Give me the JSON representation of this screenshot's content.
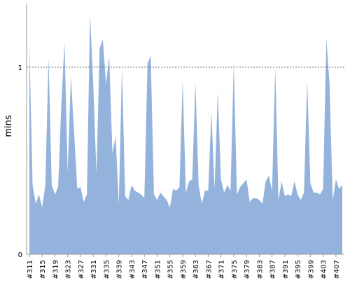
{
  "chart_data": {
    "type": "area",
    "y_label": "mins",
    "color": "#93b3dc",
    "categories": [
      "#311",
      null,
      null,
      null,
      "#315",
      null,
      null,
      null,
      "#319",
      null,
      null,
      null,
      "#323",
      null,
      null,
      null,
      "#327",
      null,
      null,
      null,
      "#331",
      null,
      null,
      null,
      "#335",
      null,
      null,
      null,
      "#339",
      null,
      null,
      null,
      "#343",
      null,
      null,
      null,
      "#347",
      null,
      null,
      null,
      "#351",
      null,
      null,
      null,
      "#355",
      null,
      null,
      null,
      "#359",
      null,
      null,
      null,
      "#363",
      null,
      null,
      null,
      "#367",
      null,
      null,
      null,
      "#371",
      null,
      null,
      null,
      "#375",
      null,
      null,
      null,
      "#379",
      null,
      null,
      null,
      "#383",
      null,
      null,
      null,
      "#387",
      null,
      null,
      null,
      "#391",
      null,
      null,
      null,
      "#395",
      null,
      null,
      null,
      "#399",
      null,
      null,
      null,
      "#403",
      null,
      null,
      null,
      "#407",
      null,
      null
    ],
    "values": [
      1.12,
      0.37,
      0.27,
      0.32,
      0.25,
      0.37,
      1.05,
      0.37,
      0.32,
      0.36,
      0.8,
      1.13,
      0.44,
      0.95,
      0.65,
      0.35,
      0.36,
      0.28,
      0.32,
      1.28,
      0.91,
      0.43,
      1.1,
      1.15,
      0.91,
      1.06,
      0.54,
      0.63,
      0.27,
      1.0,
      0.31,
      0.29,
      0.37,
      0.34,
      0.33,
      0.32,
      0.3,
      1.02,
      1.06,
      0.32,
      0.29,
      0.33,
      0.31,
      0.29,
      0.25,
      0.35,
      0.34,
      0.36,
      0.93,
      0.33,
      0.39,
      0.4,
      0.92,
      0.37,
      0.27,
      0.34,
      0.34,
      0.76,
      0.35,
      0.87,
      0.4,
      0.33,
      0.37,
      0.34,
      1.02,
      0.32,
      0.36,
      0.38,
      0.4,
      0.28,
      0.3,
      0.3,
      0.29,
      0.27,
      0.39,
      0.42,
      0.34,
      1.0,
      0.29,
      0.39,
      0.31,
      0.32,
      0.31,
      0.39,
      0.32,
      0.29,
      0.33,
      0.93,
      0.38,
      0.33,
      0.33,
      0.32,
      0.35,
      1.15,
      0.91,
      0.29,
      0.4,
      0.35,
      0.37
    ],
    "ylim": [
      0,
      1.34
    ],
    "yticks": [
      0,
      1
    ],
    "grid": true
  }
}
